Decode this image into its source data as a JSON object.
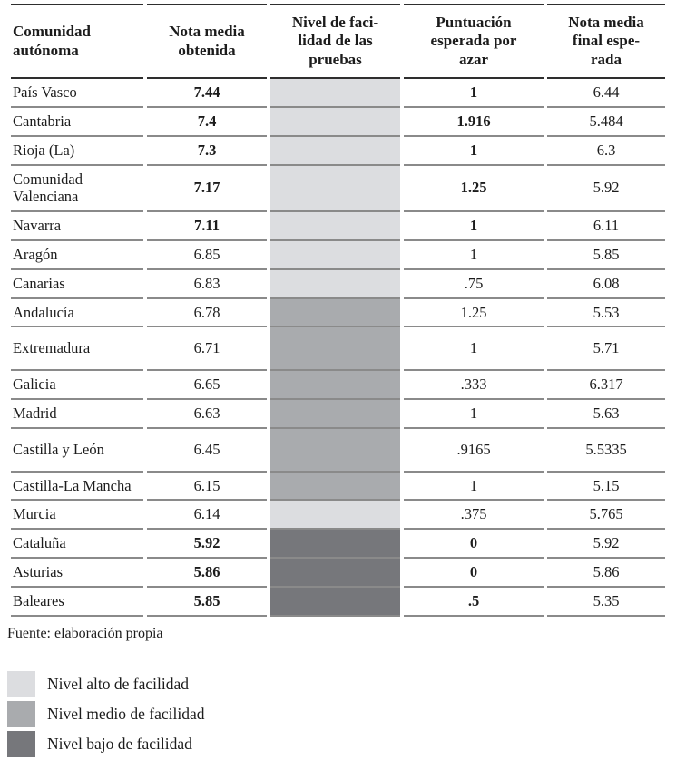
{
  "table": {
    "headers": [
      "Comunidad\nautónoma",
      "Nota media\nobtenida",
      "Nivel de faci-\nlidad de las\npruebas",
      "Puntuación\nesperada por\nazar",
      "Nota media\nfinal espe-\nrada"
    ],
    "rows": [
      {
        "name": "País Vasco",
        "nota_media": "7.44",
        "nivel": "alto",
        "azar": "1",
        "final": "6.44",
        "bold": true
      },
      {
        "name": "Cantabria",
        "nota_media": "7.4",
        "nivel": "alto",
        "azar": "1.916",
        "final": "5.484",
        "bold": true
      },
      {
        "name": "Rioja (La)",
        "nota_media": "7.3",
        "nivel": "alto",
        "azar": "1",
        "final": "6.3",
        "bold": true
      },
      {
        "name": "Comunidad Valenciana",
        "nota_media": "7.17",
        "nivel": "alto",
        "azar": "1.25",
        "final": "5.92",
        "bold": true
      },
      {
        "name": "Navarra",
        "nota_media": "7.11",
        "nivel": "alto",
        "azar": "1",
        "final": "6.11",
        "bold": true
      },
      {
        "name": "Aragón",
        "nota_media": "6.85",
        "nivel": "alto",
        "azar": "1",
        "final": "5.85",
        "bold": false
      },
      {
        "name": "Canarias",
        "nota_media": "6.83",
        "nivel": "alto",
        "azar": ".75",
        "final": "6.08",
        "bold": false
      },
      {
        "name": "Andalucía",
        "nota_media": "6.78",
        "nivel": "medio",
        "azar": "1.25",
        "final": "5.53",
        "bold": false
      },
      {
        "name": "Extremadura",
        "nota_media": "6.71",
        "nivel": "medio",
        "azar": "1",
        "final": "5.71",
        "bold": false
      },
      {
        "name": "Galicia",
        "nota_media": "6.65",
        "nivel": "medio",
        "azar": ".333",
        "final": "6.317",
        "bold": false
      },
      {
        "name": "Madrid",
        "nota_media": "6.63",
        "nivel": "medio",
        "azar": "1",
        "final": "5.63",
        "bold": false
      },
      {
        "name": "Castilla y León",
        "nota_media": "6.45",
        "nivel": "medio",
        "azar": ".9165",
        "final": "5.5335",
        "bold": false
      },
      {
        "name": "Castilla-La Mancha",
        "nota_media": "6.15",
        "nivel": "medio",
        "azar": "1",
        "final": "5.15",
        "bold": false
      },
      {
        "name": "Murcia",
        "nota_media": "6.14",
        "nivel": "alto",
        "azar": ".375",
        "final": "5.765",
        "bold": false
      },
      {
        "name": "Cataluña",
        "nota_media": "5.92",
        "nivel": "bajo",
        "azar": "0",
        "final": "5.92",
        "bold": true
      },
      {
        "name": "Asturias",
        "nota_media": "5.86",
        "nivel": "bajo",
        "azar": "0",
        "final": "5.86",
        "bold": true
      },
      {
        "name": "Baleares",
        "nota_media": "5.85",
        "nivel": "bajo",
        "azar": ".5",
        "final": "5.35",
        "bold": true
      }
    ]
  },
  "source_note": "Fuente: elaboración propia",
  "legend": {
    "items": [
      {
        "label": "Nivel alto de facilidad",
        "level": "alto"
      },
      {
        "label": "Nivel medio de facilidad",
        "level": "medio"
      },
      {
        "label": "Nivel bajo de facilidad",
        "level": "bajo"
      }
    ]
  },
  "colors": {
    "alto": "#dcdde0",
    "medio": "#a9abae",
    "bajo": "#76777b"
  }
}
